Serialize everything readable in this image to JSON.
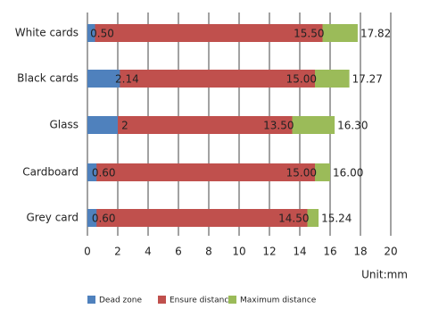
{
  "chart_data": {
    "type": "overlapping-bar",
    "orientation": "horizontal",
    "categories": [
      "White cards",
      "Black cards",
      "Glass",
      "Cardboard",
      "Grey card"
    ],
    "series": [
      {
        "name": "Dead zone",
        "color": "#4f81bd",
        "values": [
          0.5,
          2.14,
          2,
          0.6,
          0.6
        ],
        "value_labels": [
          "0.50",
          "2.14",
          "2",
          "0.60",
          "0.60"
        ]
      },
      {
        "name": "Ensure distance",
        "color": "#c0504d",
        "values": [
          15.5,
          15,
          13.5,
          15,
          14.5
        ],
        "value_labels": [
          "15.50",
          "15.00",
          "13.50",
          "15.00",
          "14.50"
        ]
      },
      {
        "name": "Maximum distance",
        "color": "#9bbb59",
        "values": [
          17.82,
          17.27,
          16.3,
          16,
          15.24
        ],
        "value_labels": [
          "17.82",
          "17.27",
          "16.30",
          "16.00",
          "15.24"
        ]
      }
    ],
    "x_label": "Unit:mm",
    "xlim": [
      0,
      20
    ],
    "xticks": [
      0,
      2,
      4,
      6,
      8,
      10,
      12,
      14,
      16,
      18,
      20
    ],
    "grid": true,
    "legend": "bottom"
  }
}
